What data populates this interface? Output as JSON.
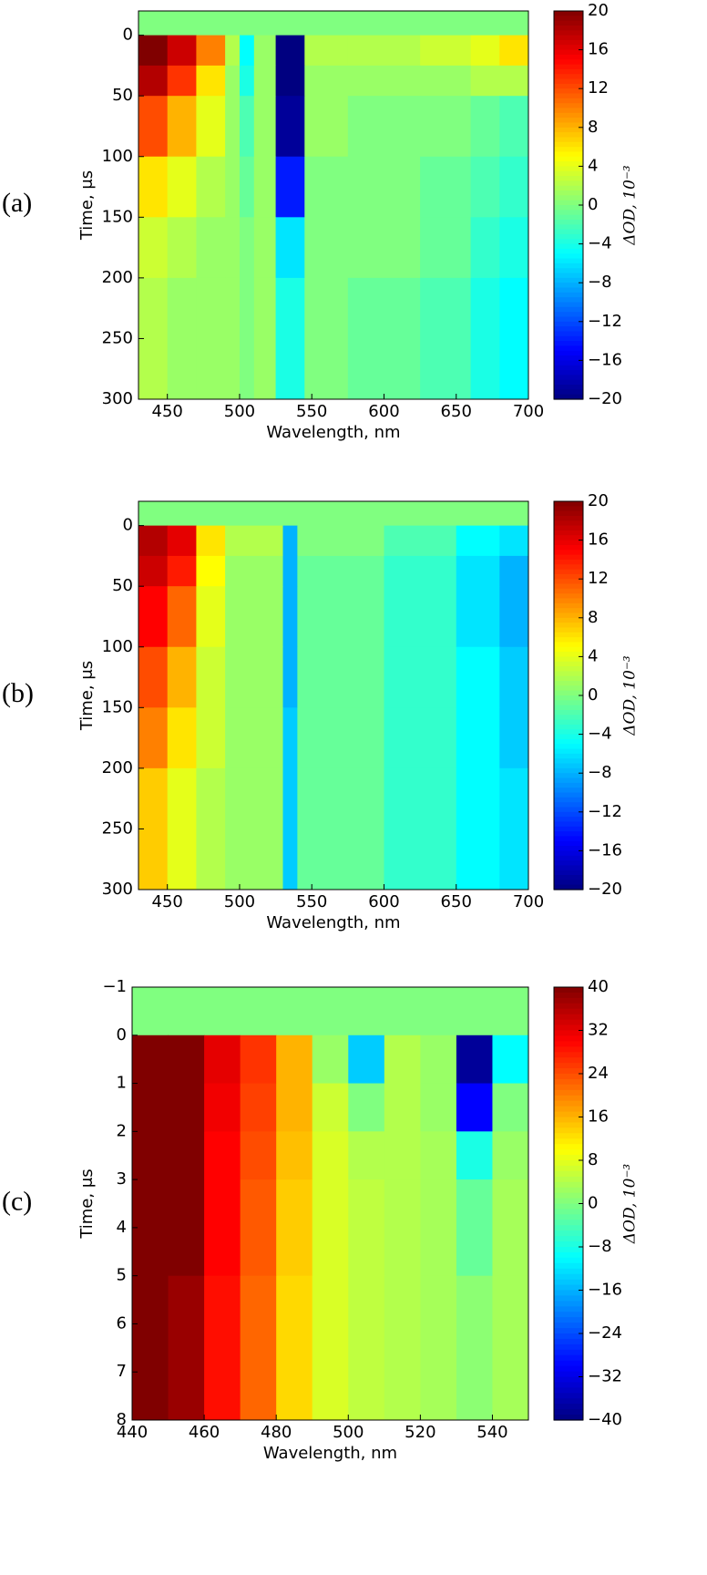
{
  "chart_data": [
    {
      "type": "heatmap",
      "panel_label": "(a)",
      "xlabel": "Wavelength, nm",
      "ylabel": "Time, μs",
      "colorbar_label": "ΔOD, 10⁻³",
      "xlim": [
        430,
        700
      ],
      "xticks": [
        450,
        500,
        550,
        600,
        650,
        700
      ],
      "ylim": [
        -20,
        300
      ],
      "yaxis_inverted": true,
      "yticks": [
        0,
        50,
        100,
        150,
        200,
        250,
        300
      ],
      "zlim": [
        -20,
        20
      ],
      "zticks": [
        20,
        16,
        12,
        8,
        4,
        0,
        {
          "value": -4,
          "label": "−4"
        },
        {
          "value": -8,
          "label": "−8"
        },
        {
          "value": -12,
          "label": "−12"
        },
        {
          "value": -16,
          "label": "−16"
        },
        {
          "value": -20,
          "label": "−20"
        }
      ],
      "colormap": "jet",
      "x_edges": [
        430,
        450,
        470,
        490,
        500,
        510,
        525,
        545,
        575,
        625,
        660,
        680,
        700
      ],
      "y_edges": [
        -20,
        0,
        25,
        50,
        100,
        150,
        200,
        300
      ],
      "values": [
        [
          0,
          0,
          0,
          0,
          0,
          0,
          0,
          0,
          0,
          0,
          0,
          0
        ],
        [
          20,
          17,
          10,
          2,
          -5,
          1,
          -20,
          2,
          2,
          3,
          4,
          6
        ],
        [
          18,
          13,
          6,
          1,
          -4,
          1,
          -20,
          1,
          1,
          1,
          2,
          2
        ],
        [
          12,
          8,
          4,
          1,
          -2,
          1,
          -19,
          1,
          0,
          0,
          -1,
          -2
        ],
        [
          6,
          4,
          2,
          1,
          -1,
          1,
          -14,
          0,
          0,
          -1,
          -2,
          -3
        ],
        [
          3,
          2,
          1,
          1,
          0,
          1,
          -6,
          0,
          0,
          -1,
          -3,
          -4
        ],
        [
          2,
          1,
          1,
          1,
          0,
          1,
          -4,
          0,
          -1,
          -2,
          -4,
          -5
        ]
      ]
    },
    {
      "type": "heatmap",
      "panel_label": "(b)",
      "xlabel": "Wavelength, nm",
      "ylabel": "Time, μs",
      "colorbar_label": "ΔOD, 10⁻³",
      "xlim": [
        430,
        700
      ],
      "xticks": [
        450,
        500,
        550,
        600,
        650,
        700
      ],
      "ylim": [
        -20,
        300
      ],
      "yaxis_inverted": true,
      "yticks": [
        0,
        50,
        100,
        150,
        200,
        250,
        300
      ],
      "zlim": [
        -20,
        20
      ],
      "zticks": [
        20,
        16,
        12,
        8,
        4,
        0,
        {
          "value": -4,
          "label": "−4"
        },
        {
          "value": -8,
          "label": "−8"
        },
        {
          "value": -12,
          "label": "−12"
        },
        {
          "value": -16,
          "label": "−16"
        },
        {
          "value": -20,
          "label": "−20"
        }
      ],
      "colormap": "jet",
      "x_edges": [
        430,
        450,
        470,
        490,
        530,
        540,
        600,
        650,
        680,
        700
      ],
      "y_edges": [
        -20,
        0,
        25,
        50,
        100,
        150,
        200,
        300
      ],
      "values": [
        [
          0,
          0,
          0,
          0,
          0,
          0,
          0,
          0,
          0
        ],
        [
          18,
          16,
          6,
          2,
          -8,
          0,
          -2,
          -5,
          -6
        ],
        [
          17,
          14,
          5,
          1,
          -8,
          -1,
          -3,
          -6,
          -8
        ],
        [
          15,
          11,
          4,
          1,
          -8,
          -1,
          -3,
          -6,
          -8
        ],
        [
          12,
          8,
          3,
          1,
          -8,
          -1,
          -3,
          -5,
          -7
        ],
        [
          10,
          6,
          3,
          1,
          -7,
          -1,
          -3,
          -5,
          -7
        ],
        [
          7,
          4,
          2,
          1,
          -7,
          -1,
          -3,
          -5,
          -6
        ]
      ]
    },
    {
      "type": "heatmap",
      "panel_label": "(c)",
      "xlabel": "Wavelength, nm",
      "ylabel": "Time, μs",
      "colorbar_label": "ΔOD, 10⁻³",
      "xlim": [
        440,
        550
      ],
      "xticks": [
        440,
        460,
        480,
        500,
        520,
        540
      ],
      "ylim": [
        -1,
        8
      ],
      "yaxis_inverted": true,
      "yticks": [
        {
          "value": -1,
          "label": "−1"
        },
        0,
        1,
        2,
        3,
        4,
        5,
        6,
        7,
        8
      ],
      "zlim": [
        -40,
        40
      ],
      "zticks": [
        40,
        32,
        24,
        16,
        8,
        0,
        {
          "value": -8,
          "label": "−8"
        },
        {
          "value": -16,
          "label": "−16"
        },
        {
          "value": -24,
          "label": "−24"
        },
        {
          "value": -32,
          "label": "−32"
        },
        {
          "value": -40,
          "label": "−40"
        }
      ],
      "colormap": "jet",
      "x_edges": [
        440,
        450,
        460,
        470,
        480,
        490,
        500,
        510,
        520,
        530,
        540,
        550
      ],
      "y_edges": [
        -1,
        0,
        1,
        2,
        3,
        5,
        8
      ],
      "values": [
        [
          0,
          0,
          0,
          0,
          0,
          0,
          0,
          0,
          0,
          0,
          0
        ],
        [
          40,
          40,
          32,
          26,
          16,
          2,
          -14,
          4,
          2,
          -38,
          -10
        ],
        [
          40,
          40,
          31,
          25,
          16,
          6,
          0,
          4,
          2,
          -30,
          0
        ],
        [
          40,
          40,
          30,
          24,
          15,
          7,
          4,
          4,
          3,
          -8,
          2
        ],
        [
          40,
          40,
          30,
          23,
          14,
          7,
          5,
          4,
          3,
          -2,
          3
        ],
        [
          40,
          38,
          29,
          22,
          13,
          7,
          5,
          4,
          3,
          1,
          3
        ]
      ]
    }
  ]
}
